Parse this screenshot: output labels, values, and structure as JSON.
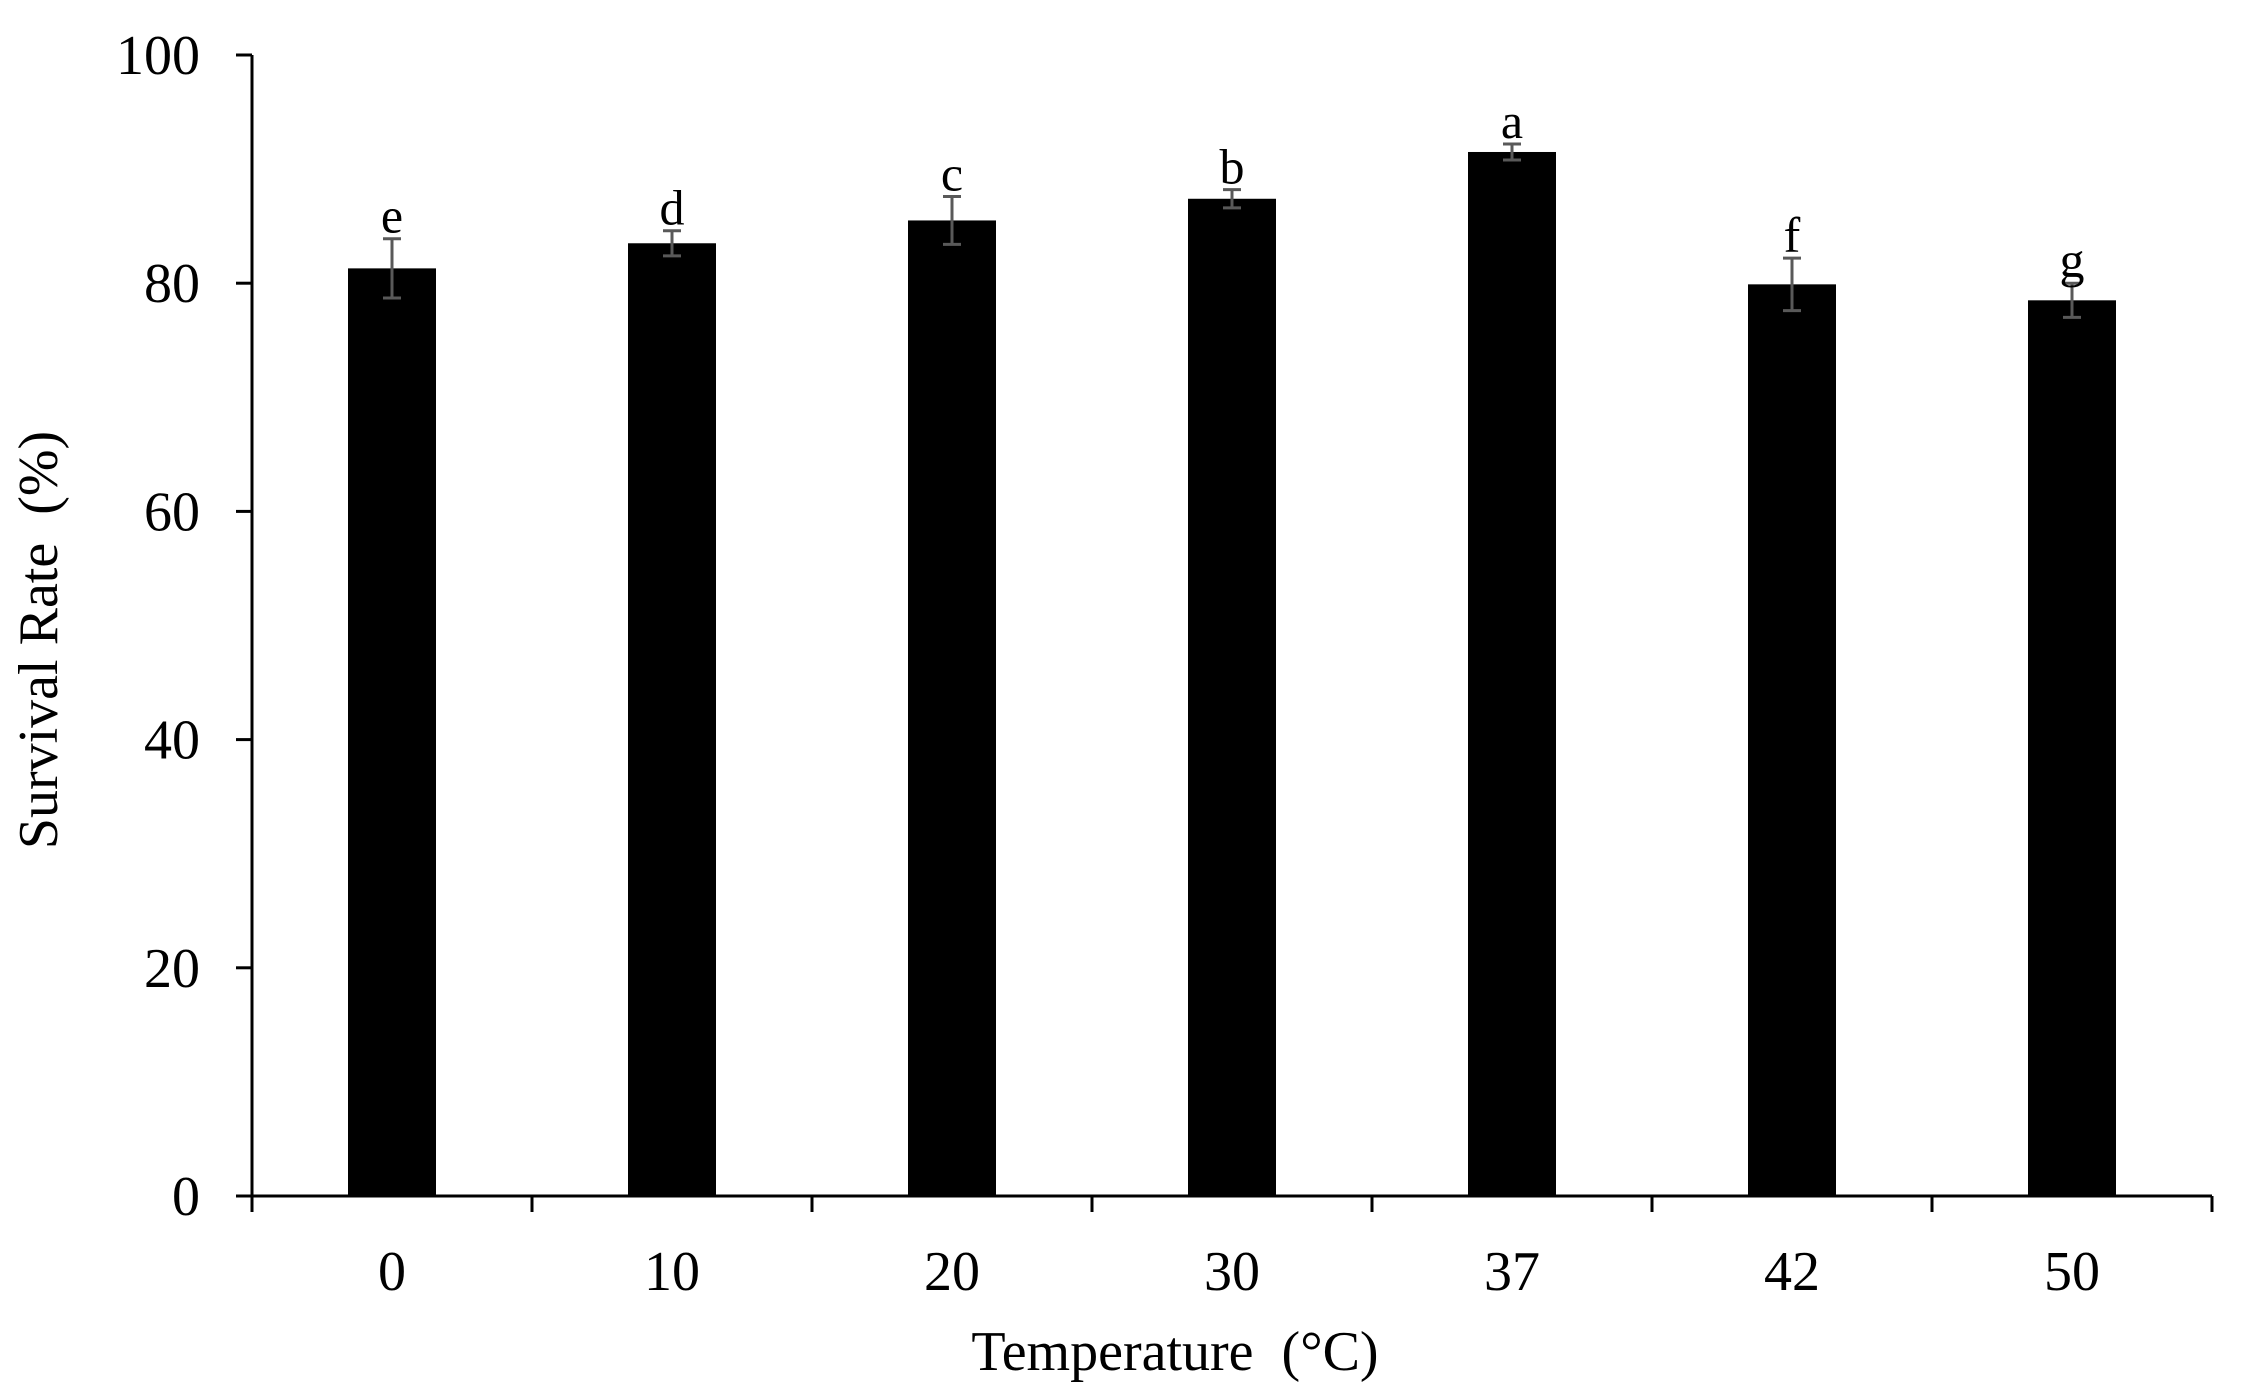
{
  "chart_data": {
    "type": "bar",
    "categories": [
      "0",
      "10",
      "20",
      "30",
      "37",
      "42",
      "50"
    ],
    "series": [
      {
        "values": [
          81.3,
          83.5,
          85.5,
          87.4,
          91.5,
          79.9,
          78.5
        ],
        "error": [
          2.6,
          1.1,
          2.1,
          0.8,
          0.7,
          2.3,
          1.5
        ],
        "significance": [
          "e",
          "d",
          "c",
          "b",
          "a",
          "f",
          "g"
        ],
        "color": "#000000"
      }
    ],
    "xlabel": "Temperature  (°C)",
    "ylabel": "Survival Rate  (%)",
    "ylim": [
      0,
      100
    ],
    "yticks": [
      "0",
      "20",
      "40",
      "60",
      "80",
      "100"
    ],
    "grid": false,
    "legend": "none",
    "error_bar_color": "#595959"
  }
}
